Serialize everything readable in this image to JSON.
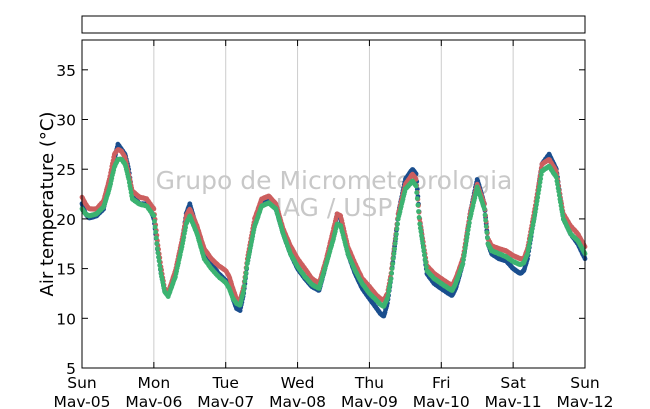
{
  "chart_data": {
    "type": "scatter",
    "title": "",
    "xlabel": "",
    "ylabel": "Air temperature (°C)",
    "ylim": [
      5,
      38
    ],
    "yticks": [
      5,
      10,
      15,
      20,
      25,
      30,
      35
    ],
    "xlim": [
      0,
      7
    ],
    "x_unit": "days since Sun Mav-05",
    "x_tick_labels": [
      {
        "x": 0,
        "day": "Sun",
        "date": "Mav-05"
      },
      {
        "x": 1,
        "day": "Mon",
        "date": "Mav-06"
      },
      {
        "x": 2,
        "day": "Tue",
        "date": "Mav-07"
      },
      {
        "x": 3,
        "day": "Wed",
        "date": "Mav-08"
      },
      {
        "x": 4,
        "day": "Thu",
        "date": "Mav-09"
      },
      {
        "x": 5,
        "day": "Fri",
        "date": "Mav-10"
      },
      {
        "x": 6,
        "day": "Sat",
        "date": "Mav-11"
      },
      {
        "x": 7,
        "day": "Sun",
        "date": "Mav-12"
      }
    ],
    "grid": "vertical",
    "legend": "empty box above plot",
    "watermark": [
      "Grupo de Micrometeorologia",
      "IAG / USP"
    ],
    "series": [
      {
        "color": "#1a4e8e",
        "x": [
          0,
          0.05,
          0.1,
          0.2,
          0.3,
          0.38,
          0.45,
          0.5,
          0.55,
          0.6,
          0.65,
          0.7,
          0.8,
          0.9,
          0.95,
          1.0,
          1.05,
          1.1,
          1.15,
          1.2,
          1.3,
          1.4,
          1.45,
          1.5,
          1.6,
          1.7,
          1.8,
          1.9,
          2.0,
          2.05,
          2.1,
          2.15,
          2.2,
          2.25,
          2.3,
          2.4,
          2.5,
          2.6,
          2.7,
          2.8,
          2.9,
          3.0,
          3.1,
          3.2,
          3.3,
          3.4,
          3.5,
          3.55,
          3.6,
          3.7,
          3.8,
          3.9,
          4.0,
          4.1,
          4.15,
          4.2,
          4.25,
          4.3,
          4.4,
          4.5,
          4.6,
          4.65,
          4.7,
          4.8,
          4.9,
          5.0,
          5.1,
          5.15,
          5.2,
          5.3,
          5.4,
          5.5,
          5.6,
          5.65,
          5.7,
          5.8,
          5.9,
          6.0,
          6.1,
          6.15,
          6.2,
          6.3,
          6.4,
          6.5,
          6.6,
          6.65,
          6.7,
          6.8,
          6.9,
          7.0
        ],
        "y": [
          21.5,
          20.5,
          20.1,
          20.3,
          21.0,
          23.5,
          26.0,
          27.5,
          27.0,
          26.5,
          25.0,
          22.5,
          21.5,
          21.5,
          21.0,
          20.0,
          17.0,
          14.5,
          12.8,
          12.5,
          14.5,
          18.0,
          20.5,
          21.5,
          19.0,
          16.5,
          15.5,
          14.5,
          13.8,
          13.2,
          12.0,
          11.0,
          10.8,
          12.5,
          15.5,
          19.5,
          21.5,
          21.8,
          21.0,
          18.5,
          16.5,
          15.0,
          14.0,
          13.2,
          12.8,
          15.5,
          18.5,
          20.5,
          20.0,
          16.5,
          14.5,
          13.0,
          12.0,
          11.0,
          10.5,
          10.2,
          11.5,
          14.0,
          20.5,
          24.0,
          25.0,
          24.5,
          20.0,
          14.5,
          13.5,
          13.0,
          12.5,
          12.3,
          13.0,
          15.5,
          20.5,
          24.0,
          21.5,
          17.5,
          16.5,
          16.0,
          15.8,
          15.0,
          14.5,
          14.8,
          16.0,
          20.5,
          25.5,
          26.5,
          25.0,
          22.5,
          20.0,
          18.5,
          17.5,
          16.0
        ]
      },
      {
        "color": "#cc5f5f",
        "x": [
          0,
          0.05,
          0.1,
          0.2,
          0.3,
          0.38,
          0.45,
          0.5,
          0.55,
          0.6,
          0.65,
          0.7,
          0.8,
          0.9,
          0.95,
          1.0,
          1.05,
          1.1,
          1.15,
          1.2,
          1.3,
          1.4,
          1.45,
          1.5,
          1.6,
          1.7,
          1.8,
          1.9,
          2.0,
          2.05,
          2.1,
          2.15,
          2.2,
          2.25,
          2.3,
          2.4,
          2.5,
          2.6,
          2.7,
          2.8,
          2.9,
          3.0,
          3.1,
          3.2,
          3.3,
          3.4,
          3.5,
          3.55,
          3.6,
          3.7,
          3.8,
          3.9,
          4.0,
          4.1,
          4.15,
          4.2,
          4.25,
          4.3,
          4.4,
          4.5,
          4.6,
          4.65,
          4.7,
          4.8,
          4.9,
          5.0,
          5.1,
          5.15,
          5.2,
          5.3,
          5.4,
          5.5,
          5.6,
          5.65,
          5.7,
          5.8,
          5.9,
          6.0,
          6.1,
          6.15,
          6.2,
          6.3,
          6.4,
          6.5,
          6.6,
          6.65,
          6.7,
          6.8,
          6.9,
          7.0
        ],
        "y": [
          22.2,
          21.5,
          21.0,
          21.0,
          21.8,
          24.0,
          26.5,
          27.0,
          26.8,
          26.2,
          24.5,
          22.8,
          22.2,
          22.0,
          21.5,
          21.0,
          17.8,
          15.2,
          13.0,
          12.6,
          14.8,
          18.2,
          20.3,
          21.0,
          19.3,
          17.0,
          16.0,
          15.3,
          14.8,
          14.2,
          13.0,
          12.0,
          11.8,
          13.2,
          16.0,
          20.0,
          22.0,
          22.3,
          21.5,
          19.0,
          17.3,
          16.0,
          15.0,
          14.0,
          13.5,
          16.0,
          19.0,
          20.5,
          20.3,
          17.2,
          15.5,
          14.0,
          13.2,
          12.3,
          12.0,
          11.8,
          12.5,
          14.5,
          20.5,
          23.5,
          24.5,
          24.0,
          20.0,
          15.3,
          14.5,
          14.0,
          13.5,
          13.3,
          14.0,
          16.0,
          20.5,
          23.5,
          21.5,
          18.0,
          17.3,
          17.0,
          16.8,
          16.3,
          16.0,
          16.0,
          17.0,
          21.0,
          25.5,
          26.0,
          24.8,
          22.5,
          20.5,
          19.3,
          18.5,
          17.2
        ]
      },
      {
        "color": "#3cb371",
        "x": [
          0,
          0.05,
          0.1,
          0.2,
          0.3,
          0.38,
          0.45,
          0.5,
          0.55,
          0.6,
          0.65,
          0.7,
          0.8,
          0.9,
          0.95,
          1.0,
          1.05,
          1.1,
          1.15,
          1.2,
          1.3,
          1.4,
          1.45,
          1.5,
          1.6,
          1.7,
          1.8,
          1.9,
          2.0,
          2.05,
          2.1,
          2.15,
          2.2,
          2.25,
          2.3,
          2.4,
          2.5,
          2.6,
          2.7,
          2.8,
          2.9,
          3.0,
          3.1,
          3.2,
          3.3,
          3.4,
          3.5,
          3.55,
          3.6,
          3.7,
          3.8,
          3.9,
          4.0,
          4.1,
          4.15,
          4.2,
          4.25,
          4.3,
          4.4,
          4.5,
          4.6,
          4.65,
          4.7,
          4.8,
          4.9,
          5.0,
          5.1,
          5.15,
          5.2,
          5.3,
          5.4,
          5.5,
          5.6,
          5.65,
          5.7,
          5.8,
          5.9,
          6.0,
          6.1,
          6.15,
          6.2,
          6.3,
          6.4,
          6.5,
          6.6,
          6.65,
          6.7,
          6.8,
          6.9,
          7.0
        ],
        "y": [
          21.0,
          20.5,
          20.3,
          20.5,
          21.2,
          23.0,
          25.2,
          26.0,
          26.0,
          25.5,
          24.0,
          22.0,
          21.5,
          21.3,
          20.8,
          20.3,
          17.0,
          14.5,
          12.7,
          12.2,
          14.2,
          17.5,
          19.5,
          20.3,
          18.5,
          16.0,
          15.0,
          14.2,
          13.6,
          13.0,
          12.0,
          11.5,
          11.3,
          12.8,
          15.5,
          19.2,
          21.3,
          21.6,
          21.0,
          18.5,
          16.5,
          15.2,
          14.2,
          13.4,
          13.0,
          15.5,
          18.0,
          19.5,
          19.3,
          16.5,
          14.8,
          13.5,
          12.5,
          11.8,
          11.4,
          11.2,
          12.0,
          14.0,
          20.0,
          23.0,
          23.8,
          23.3,
          19.5,
          14.8,
          14.0,
          13.5,
          13.0,
          12.8,
          13.5,
          15.5,
          20.0,
          23.2,
          21.0,
          17.5,
          16.8,
          16.5,
          16.2,
          15.7,
          15.4,
          15.6,
          16.5,
          20.3,
          24.8,
          25.3,
          24.2,
          22.0,
          20.0,
          18.5,
          17.8,
          16.5
        ]
      }
    ]
  }
}
